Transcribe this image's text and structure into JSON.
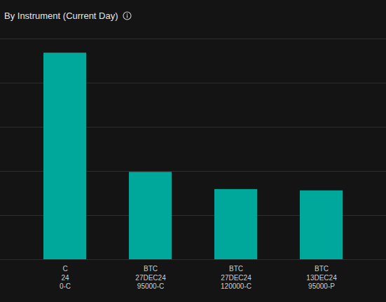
{
  "chart_data": {
    "type": "bar",
    "title": "By Instrument (Current Day)",
    "categories": [
      "C\n24\n0-C",
      "BTC\n27DEC24\n95000-C",
      "BTC\n27DEC24\n120000-C",
      "BTC\n13DEC24\n95000-P"
    ],
    "values": [
      4.68,
      1.98,
      1.59,
      1.56
    ],
    "color": "#00a89c",
    "ylim": [
      0,
      5
    ],
    "yticks": [
      0,
      1,
      2,
      3,
      4,
      5
    ],
    "grid": true,
    "tick_labels": "x"
  }
}
